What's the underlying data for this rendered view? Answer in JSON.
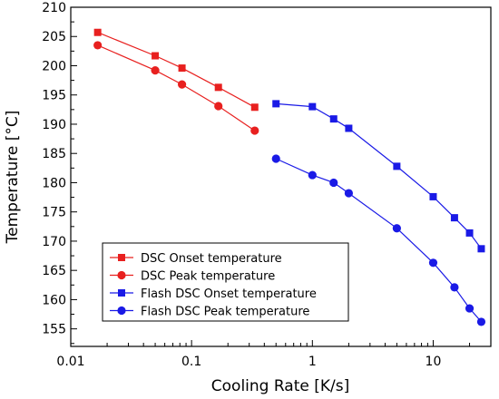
{
  "chart_data": {
    "type": "scatter",
    "title": "",
    "xlabel": "Cooling Rate [K/s]",
    "ylabel": "Temperature [°C]",
    "x_scale": "log",
    "xlim": [
      0.01,
      30
    ],
    "ylim": [
      152,
      210
    ],
    "x_ticks": [
      0.01,
      0.1,
      1,
      10
    ],
    "x_tick_labels": [
      "0.01",
      "0.1",
      "1",
      "10"
    ],
    "y_ticks": [
      155,
      160,
      165,
      170,
      175,
      180,
      185,
      190,
      195,
      200,
      205,
      210
    ],
    "y_tick_labels": [
      "155",
      "160",
      "165",
      "170",
      "175",
      "180",
      "185",
      "190",
      "195",
      "200",
      "205",
      "210"
    ],
    "grid": false,
    "legend_position": "bottom-left",
    "series": [
      {
        "name": "DSC Onset temperature",
        "marker": "square",
        "color": "#e8201f",
        "x": [
          0.0167,
          0.05,
          0.0833,
          0.1667,
          0.3333
        ],
        "y": [
          205.7,
          201.7,
          199.6,
          196.3,
          192.9
        ]
      },
      {
        "name": "DSC Peak temperature",
        "marker": "circle",
        "color": "#e8201f",
        "x": [
          0.0167,
          0.05,
          0.0833,
          0.1667,
          0.3333
        ],
        "y": [
          203.5,
          199.2,
          196.8,
          193.1,
          188.9
        ]
      },
      {
        "name": "Flash DSC Onset temperature",
        "marker": "square",
        "color": "#1a1ae6",
        "x": [
          0.5,
          1,
          1.5,
          2,
          5,
          10,
          15,
          20,
          25
        ],
        "y": [
          193.5,
          193.0,
          190.9,
          189.3,
          182.8,
          177.6,
          174.0,
          171.4,
          168.7
        ]
      },
      {
        "name": "Flash DSC Peak temperature",
        "marker": "circle",
        "color": "#1a1ae6",
        "x": [
          0.5,
          1,
          1.5,
          2,
          5,
          10,
          15,
          20,
          25
        ],
        "y": [
          184.1,
          181.3,
          180.0,
          178.2,
          172.2,
          166.3,
          162.1,
          158.5,
          156.2
        ]
      }
    ]
  }
}
